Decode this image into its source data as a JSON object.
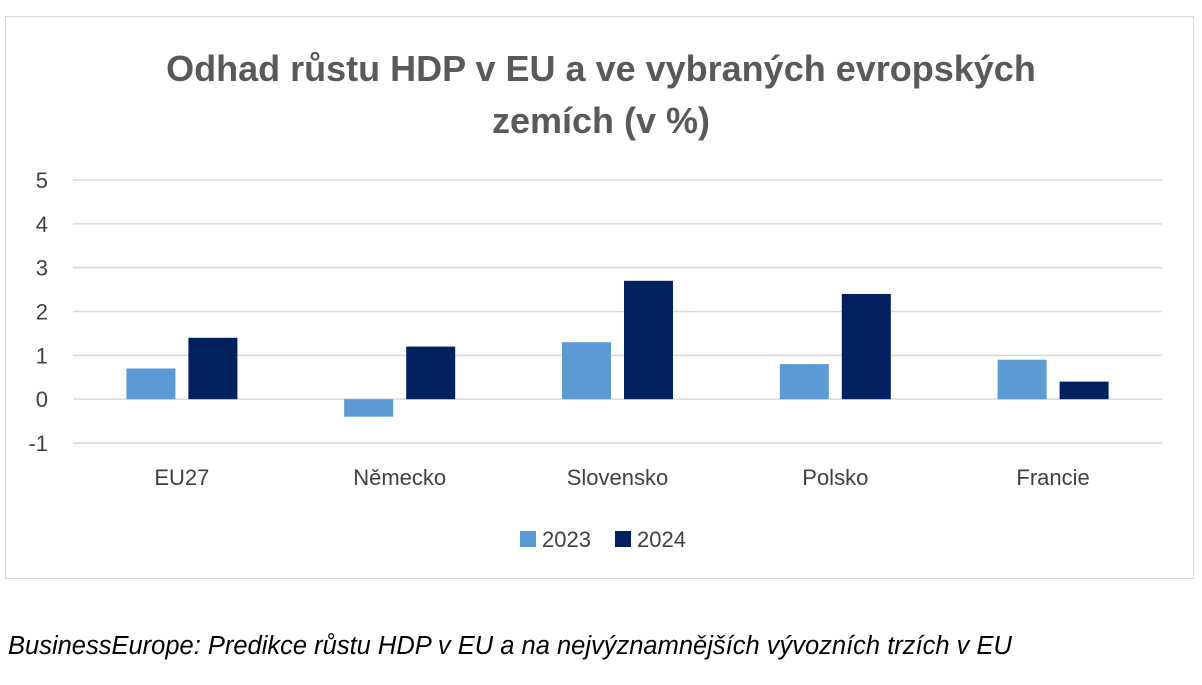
{
  "chart_data": {
    "type": "bar",
    "title_lines": [
      "Odhad růstu HDP v EU a ve vybraných evropských",
      "zemích (v %)"
    ],
    "categories": [
      "EU27",
      "Německo",
      "Slovensko",
      "Polsko",
      "Francie"
    ],
    "series": [
      {
        "name": "2023",
        "color": "#5b9bd5",
        "values": [
          0.7,
          -0.4,
          1.3,
          0.8,
          0.9
        ]
      },
      {
        "name": "2024",
        "color": "#002060",
        "values": [
          1.4,
          1.2,
          2.7,
          2.4,
          0.4
        ]
      }
    ],
    "ylim": [
      -1,
      5
    ],
    "yticks": [
      "5",
      "4",
      "3",
      "2",
      "1",
      "0",
      "-1"
    ],
    "grid": true,
    "legend": "bottom",
    "xlabel": "",
    "ylabel": ""
  },
  "caption": "BusinessEurope: Predikce růstu HDP v EU a na nejvýznamnějších vývozních trzích v EU"
}
